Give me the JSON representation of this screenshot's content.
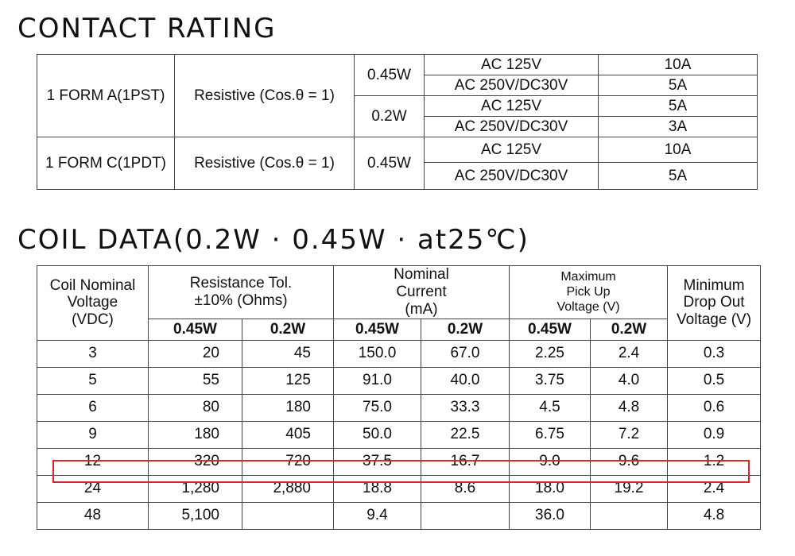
{
  "contact": {
    "title": "CONTACT RATING",
    "form_a": "1 FORM A(1PST)",
    "form_c": "1 FORM C(1PDT)",
    "resistive": "Resistive (Cos.θ = 1)",
    "w045": "0.45W",
    "w02": "0.2W",
    "ac125": "AC 125V",
    "ac250": "AC 250V/DC30V",
    "a10": "10A",
    "a5": "5A",
    "a3": "3A"
  },
  "coil": {
    "title": "COIL DATA(0.2W · 0.45W · at25℃)",
    "headers": {
      "coil_voltage": "Coil Nominal Voltage (VDC)",
      "resistance": "Resistance Tol.±10% (Ohms)",
      "current": "Nominal Current (mA)",
      "pickup": "Maximum Pick Up Voltage (V)",
      "drop": "Minimum Drop Out Voltage (V)",
      "w045": "0.45W",
      "w02": "0.2W"
    },
    "rows": [
      {
        "v": "3",
        "r045": "20",
        "r02": "45",
        "i045": "150.0",
        "i02": "67.0",
        "p045": "2.25",
        "p02": "2.4",
        "d": "0.3"
      },
      {
        "v": "5",
        "r045": "55",
        "r02": "125",
        "i045": "91.0",
        "i02": "40.0",
        "p045": "3.75",
        "p02": "4.0",
        "d": "0.5"
      },
      {
        "v": "6",
        "r045": "80",
        "r02": "180",
        "i045": "75.0",
        "i02": "33.3",
        "p045": "4.5",
        "p02": "4.8",
        "d": "0.6"
      },
      {
        "v": "9",
        "r045": "180",
        "r02": "405",
        "i045": "50.0",
        "i02": "22.5",
        "p045": "6.75",
        "p02": "7.2",
        "d": "0.9"
      },
      {
        "v": "12",
        "r045": "320",
        "r02": "720",
        "i045": "37.5",
        "i02": "16.7",
        "p045": "9.0",
        "p02": "9.6",
        "d": "1.2"
      },
      {
        "v": "24",
        "r045": "1,280",
        "r02": "2,880",
        "i045": "18.8",
        "i02": "8.6",
        "p045": "18.0",
        "p02": "19.2",
        "d": "2.4"
      },
      {
        "v": "48",
        "r045": "5,100",
        "r02": "",
        "i045": "9.4",
        "i02": "",
        "p045": "36.0",
        "p02": "",
        "d": "4.8"
      }
    ]
  },
  "highlight": {
    "color": "#d62828",
    "row_voltage": "12"
  }
}
